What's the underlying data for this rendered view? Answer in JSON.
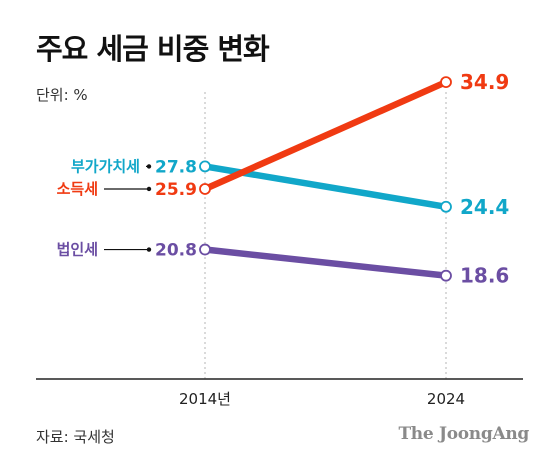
{
  "header": {
    "title": "주요 세금 비중 변화",
    "unit": "단위: %"
  },
  "footer": {
    "source": "자료: 국세청",
    "logo_text": "The JoongAng"
  },
  "chart_data": {
    "type": "line",
    "title": "주요 세금 비중 변화",
    "categories": [
      "2014년",
      "2024"
    ],
    "ylim": [
      14,
      37
    ],
    "grid": false,
    "series": [
      {
        "name": "부가가치세",
        "values": [
          27.8,
          24.4
        ],
        "labels": [
          "27.8",
          "24.4"
        ],
        "color": "#11a7c9"
      },
      {
        "name": "소득세",
        "values": [
          25.9,
          34.9
        ],
        "labels": [
          "25.9",
          "34.9"
        ],
        "color": "#f03a12"
      },
      {
        "name": "법인세",
        "values": [
          20.8,
          18.6
        ],
        "labels": [
          "20.8",
          "18.6"
        ],
        "color": "#6b4ea3"
      }
    ]
  }
}
